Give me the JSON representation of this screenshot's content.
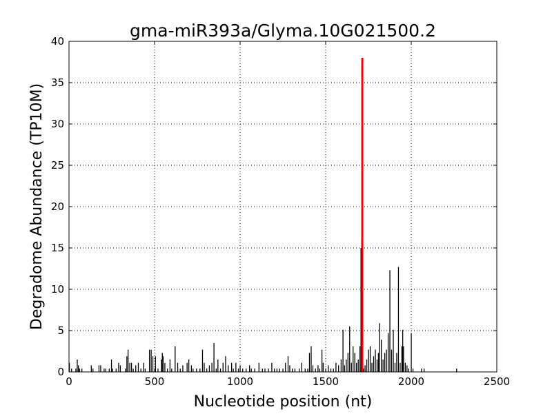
{
  "chart_data": {
    "type": "bar",
    "title": "gma-miR393a/Glyma.10G021500.2",
    "xlabel": "Nucleotide position (nt)",
    "ylabel": "Degradome Abundance (TP10M)",
    "xlim": [
      0,
      2500
    ],
    "ylim": [
      0,
      40
    ],
    "xticks": [
      0,
      500,
      1000,
      1500,
      2000,
      2500
    ],
    "yticks": [
      0,
      5,
      10,
      15,
      20,
      25,
      30,
      35,
      40
    ],
    "grid": true,
    "series": [
      {
        "color": "#000000",
        "points": [
          [
            2,
            1.1
          ],
          [
            15,
            0.4
          ],
          [
            40,
            0.4
          ],
          [
            48,
            1.5
          ],
          [
            55,
            0.8
          ],
          [
            62,
            0.4
          ],
          [
            75,
            0.4
          ],
          [
            130,
            0.8
          ],
          [
            140,
            0.4
          ],
          [
            175,
            0.8
          ],
          [
            185,
            0.8
          ],
          [
            205,
            0.4
          ],
          [
            215,
            0.4
          ],
          [
            235,
            0.4
          ],
          [
            248,
            1.5
          ],
          [
            255,
            0.4
          ],
          [
            275,
            0.4
          ],
          [
            290,
            1.1
          ],
          [
            300,
            0.8
          ],
          [
            330,
            0.4
          ],
          [
            338,
            1.9
          ],
          [
            345,
            2.7
          ],
          [
            355,
            1.1
          ],
          [
            365,
            1.1
          ],
          [
            375,
            0.4
          ],
          [
            390,
            0.8
          ],
          [
            405,
            1.1
          ],
          [
            420,
            0.4
          ],
          [
            435,
            1.1
          ],
          [
            445,
            0.4
          ],
          [
            470,
            2.7
          ],
          [
            480,
            2.7
          ],
          [
            490,
            1.9
          ],
          [
            505,
            1.9
          ],
          [
            520,
            0.4
          ],
          [
            540,
            1.5
          ],
          [
            545,
            2.3
          ],
          [
            550,
            1.9
          ],
          [
            560,
            1.1
          ],
          [
            575,
            0.4
          ],
          [
            590,
            1.5
          ],
          [
            600,
            0.4
          ],
          [
            620,
            3.1
          ],
          [
            635,
            1.1
          ],
          [
            650,
            0.4
          ],
          [
            665,
            0.8
          ],
          [
            690,
            1.1
          ],
          [
            700,
            1.5
          ],
          [
            715,
            0.8
          ],
          [
            725,
            0.4
          ],
          [
            745,
            0.4
          ],
          [
            765,
            0.4
          ],
          [
            780,
            2.7
          ],
          [
            790,
            1.1
          ],
          [
            805,
            0.4
          ],
          [
            820,
            0.8
          ],
          [
            835,
            1.1
          ],
          [
            847,
            3.5
          ],
          [
            860,
            0.4
          ],
          [
            870,
            1.5
          ],
          [
            885,
            0.4
          ],
          [
            900,
            1.1
          ],
          [
            915,
            1.9
          ],
          [
            930,
            0.8
          ],
          [
            950,
            1.1
          ],
          [
            960,
            0.4
          ],
          [
            975,
            1.1
          ],
          [
            990,
            0.4
          ],
          [
            1000,
            0.8
          ],
          [
            1015,
            0.4
          ],
          [
            1035,
            0.4
          ],
          [
            1055,
            0.8
          ],
          [
            1065,
            0.4
          ],
          [
            1085,
            0.4
          ],
          [
            1110,
            1.1
          ],
          [
            1130,
            0.4
          ],
          [
            1145,
            0.4
          ],
          [
            1165,
            0.4
          ],
          [
            1185,
            1.1
          ],
          [
            1200,
            0.4
          ],
          [
            1215,
            0.4
          ],
          [
            1230,
            0.4
          ],
          [
            1250,
            0.4
          ],
          [
            1265,
            1.1
          ],
          [
            1280,
            1.9
          ],
          [
            1290,
            0.8
          ],
          [
            1305,
            0.4
          ],
          [
            1320,
            0.4
          ],
          [
            1345,
            0.4
          ],
          [
            1360,
            1.1
          ],
          [
            1380,
            0.4
          ],
          [
            1395,
            0.4
          ],
          [
            1405,
            2.3
          ],
          [
            1415,
            3.1
          ],
          [
            1425,
            0.8
          ],
          [
            1440,
            0.4
          ],
          [
            1455,
            0.8
          ],
          [
            1465,
            0.4
          ],
          [
            1478,
            2.7
          ],
          [
            1485,
            1.1
          ],
          [
            1500,
            0.4
          ],
          [
            1515,
            0.8
          ],
          [
            1530,
            0.4
          ],
          [
            1545,
            0.4
          ],
          [
            1560,
            1.1
          ],
          [
            1575,
            0.8
          ],
          [
            1590,
            1.5
          ],
          [
            1601,
            5.1
          ],
          [
            1610,
            0.8
          ],
          [
            1620,
            1.5
          ],
          [
            1630,
            2.3
          ],
          [
            1640,
            5.5
          ],
          [
            1650,
            1.1
          ],
          [
            1660,
            3.1
          ],
          [
            1670,
            2.3
          ],
          [
            1680,
            1.1
          ],
          [
            1690,
            1.5
          ],
          [
            1700,
            3.1
          ],
          [
            1706,
            15.0
          ],
          [
            1710,
            16.2
          ],
          [
            1722,
            0.4
          ],
          [
            1730,
            0.8
          ],
          [
            1740,
            1.5
          ],
          [
            1750,
            2.7
          ],
          [
            1760,
            3.1
          ],
          [
            1770,
            1.1
          ],
          [
            1780,
            1.9
          ],
          [
            1790,
            2.7
          ],
          [
            1800,
            1.5
          ],
          [
            1808,
            2.3
          ],
          [
            1815,
            5.9
          ],
          [
            1825,
            3.9
          ],
          [
            1835,
            1.5
          ],
          [
            1845,
            2.3
          ],
          [
            1855,
            2.7
          ],
          [
            1865,
            4.7
          ],
          [
            1875,
            12.3
          ],
          [
            1885,
            2.7
          ],
          [
            1895,
            5.1
          ],
          [
            1905,
            1.1
          ],
          [
            1915,
            2.3
          ],
          [
            1925,
            12.7
          ],
          [
            1935,
            1.1
          ],
          [
            1945,
            3.1
          ],
          [
            1950,
            5.1
          ],
          [
            1955,
            3.1
          ],
          [
            1965,
            1.1
          ],
          [
            1975,
            0.8
          ],
          [
            1985,
            0.4
          ],
          [
            2000,
            4.7
          ],
          [
            2010,
            0.4
          ],
          [
            2060,
            0.4
          ],
          [
            2075,
            0.4
          ],
          [
            2265,
            0.4
          ]
        ]
      },
      {
        "color": "#ff0000",
        "points": [
          [
            1714,
            38.0
          ]
        ]
      }
    ]
  }
}
